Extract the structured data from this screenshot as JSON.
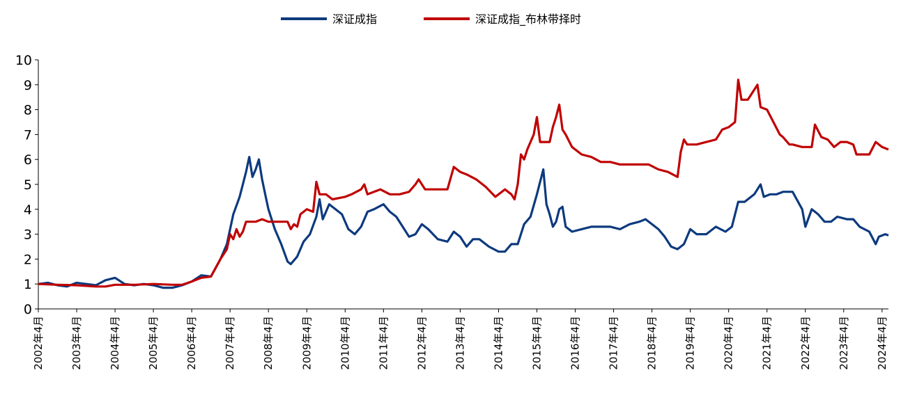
{
  "chart_data": {
    "type": "line",
    "title": "",
    "xlabel": "",
    "ylabel": "",
    "ylim": [
      0,
      10
    ],
    "y_ticks": [
      0,
      1,
      2,
      3,
      4,
      5,
      6,
      7,
      8,
      9,
      10
    ],
    "x_range": [
      "2002-04",
      "2024-06"
    ],
    "x_tick_labels": [
      "2002年4月",
      "2003年4月",
      "2004年4月",
      "2005年4月",
      "2006年4月",
      "2007年4月",
      "2008年4月",
      "2009年4月",
      "2010年4月",
      "2011年4月",
      "2012年4月",
      "2013年4月",
      "2014年4月",
      "2015年4月",
      "2016年4月",
      "2017年4月",
      "2018年4月",
      "2019年4月",
      "2020年4月",
      "2021年4月",
      "2022年4月",
      "2023年4月",
      "2024年4月"
    ],
    "legend_position": "top-center",
    "grid": false,
    "series": [
      {
        "name": "深证成指",
        "color": "#0d3a7e",
        "points": [
          [
            "2002-04",
            1.0
          ],
          [
            "2002-07",
            1.05
          ],
          [
            "2002-10",
            0.95
          ],
          [
            "2003-01",
            0.9
          ],
          [
            "2003-04",
            1.05
          ],
          [
            "2003-07",
            1.0
          ],
          [
            "2003-10",
            0.95
          ],
          [
            "2004-01",
            1.15
          ],
          [
            "2004-04",
            1.25
          ],
          [
            "2004-07",
            1.0
          ],
          [
            "2004-10",
            0.95
          ],
          [
            "2005-01",
            1.0
          ],
          [
            "2005-04",
            0.95
          ],
          [
            "2005-07",
            0.85
          ],
          [
            "2005-10",
            0.85
          ],
          [
            "2006-01",
            0.95
          ],
          [
            "2006-04",
            1.1
          ],
          [
            "2006-07",
            1.35
          ],
          [
            "2006-10",
            1.3
          ],
          [
            "2007-01",
            2.0
          ],
          [
            "2007-03",
            2.6
          ],
          [
            "2007-05",
            3.8
          ],
          [
            "2007-07",
            4.5
          ],
          [
            "2007-09",
            5.5
          ],
          [
            "2007-10",
            6.1
          ],
          [
            "2007-11",
            5.3
          ],
          [
            "2007-12",
            5.6
          ],
          [
            "2008-01",
            6.0
          ],
          [
            "2008-02",
            5.2
          ],
          [
            "2008-03",
            4.6
          ],
          [
            "2008-04",
            4.0
          ],
          [
            "2008-06",
            3.2
          ],
          [
            "2008-08",
            2.6
          ],
          [
            "2008-10",
            1.9
          ],
          [
            "2008-11",
            1.8
          ],
          [
            "2009-01",
            2.1
          ],
          [
            "2009-03",
            2.7
          ],
          [
            "2009-05",
            3.0
          ],
          [
            "2009-07",
            3.7
          ],
          [
            "2009-08",
            4.4
          ],
          [
            "2009-09",
            3.6
          ],
          [
            "2009-11",
            4.2
          ],
          [
            "2010-01",
            4.0
          ],
          [
            "2010-03",
            3.8
          ],
          [
            "2010-05",
            3.2
          ],
          [
            "2010-07",
            3.0
          ],
          [
            "2010-09",
            3.3
          ],
          [
            "2010-11",
            3.9
          ],
          [
            "2011-01",
            4.0
          ],
          [
            "2011-04",
            4.2
          ],
          [
            "2011-06",
            3.9
          ],
          [
            "2011-08",
            3.7
          ],
          [
            "2011-10",
            3.3
          ],
          [
            "2011-12",
            2.9
          ],
          [
            "2012-02",
            3.0
          ],
          [
            "2012-04",
            3.4
          ],
          [
            "2012-06",
            3.2
          ],
          [
            "2012-09",
            2.8
          ],
          [
            "2012-12",
            2.7
          ],
          [
            "2013-02",
            3.1
          ],
          [
            "2013-04",
            2.9
          ],
          [
            "2013-06",
            2.5
          ],
          [
            "2013-08",
            2.8
          ],
          [
            "2013-10",
            2.8
          ],
          [
            "2014-01",
            2.5
          ],
          [
            "2014-04",
            2.3
          ],
          [
            "2014-06",
            2.3
          ],
          [
            "2014-08",
            2.6
          ],
          [
            "2014-10",
            2.6
          ],
          [
            "2014-12",
            3.4
          ],
          [
            "2015-02",
            3.7
          ],
          [
            "2015-04",
            4.6
          ],
          [
            "2015-06",
            5.6
          ],
          [
            "2015-07",
            4.2
          ],
          [
            "2015-08",
            3.8
          ],
          [
            "2015-09",
            3.3
          ],
          [
            "2015-10",
            3.5
          ],
          [
            "2015-11",
            4.0
          ],
          [
            "2015-12",
            4.1
          ],
          [
            "2016-01",
            3.3
          ],
          [
            "2016-03",
            3.1
          ],
          [
            "2016-06",
            3.2
          ],
          [
            "2016-09",
            3.3
          ],
          [
            "2016-12",
            3.3
          ],
          [
            "2017-03",
            3.3
          ],
          [
            "2017-06",
            3.2
          ],
          [
            "2017-09",
            3.4
          ],
          [
            "2017-12",
            3.5
          ],
          [
            "2018-02",
            3.6
          ],
          [
            "2018-04",
            3.4
          ],
          [
            "2018-06",
            3.2
          ],
          [
            "2018-08",
            2.9
          ],
          [
            "2018-10",
            2.5
          ],
          [
            "2018-12",
            2.4
          ],
          [
            "2019-02",
            2.6
          ],
          [
            "2019-04",
            3.2
          ],
          [
            "2019-06",
            3.0
          ],
          [
            "2019-09",
            3.0
          ],
          [
            "2019-12",
            3.3
          ],
          [
            "2020-03",
            3.1
          ],
          [
            "2020-05",
            3.3
          ],
          [
            "2020-07",
            4.3
          ],
          [
            "2020-09",
            4.3
          ],
          [
            "2020-12",
            4.6
          ],
          [
            "2021-02",
            5.0
          ],
          [
            "2021-03",
            4.5
          ],
          [
            "2021-05",
            4.6
          ],
          [
            "2021-07",
            4.6
          ],
          [
            "2021-09",
            4.7
          ],
          [
            "2021-12",
            4.7
          ],
          [
            "2022-03",
            4.0
          ],
          [
            "2022-04",
            3.3
          ],
          [
            "2022-06",
            4.0
          ],
          [
            "2022-08",
            3.8
          ],
          [
            "2022-10",
            3.5
          ],
          [
            "2022-12",
            3.5
          ],
          [
            "2023-02",
            3.7
          ],
          [
            "2023-05",
            3.6
          ],
          [
            "2023-07",
            3.6
          ],
          [
            "2023-09",
            3.3
          ],
          [
            "2023-12",
            3.1
          ],
          [
            "2024-02",
            2.6
          ],
          [
            "2024-03",
            2.9
          ],
          [
            "2024-05",
            3.0
          ],
          [
            "2024-06",
            2.95
          ]
        ]
      },
      {
        "name": "深证成指_布林带择时",
        "color": "#c00000",
        "points": [
          [
            "2002-04",
            1.0
          ],
          [
            "2002-10",
            0.97
          ],
          [
            "2003-04",
            0.95
          ],
          [
            "2003-10",
            0.9
          ],
          [
            "2004-01",
            0.9
          ],
          [
            "2004-04",
            0.97
          ],
          [
            "2004-10",
            0.97
          ],
          [
            "2005-04",
            1.0
          ],
          [
            "2005-10",
            0.97
          ],
          [
            "2006-01",
            0.97
          ],
          [
            "2006-04",
            1.1
          ],
          [
            "2006-07",
            1.25
          ],
          [
            "2006-10",
            1.3
          ],
          [
            "2007-01",
            2.0
          ],
          [
            "2007-03",
            2.4
          ],
          [
            "2007-04",
            3.0
          ],
          [
            "2007-05",
            2.8
          ],
          [
            "2007-06",
            3.2
          ],
          [
            "2007-07",
            2.9
          ],
          [
            "2007-08",
            3.1
          ],
          [
            "2007-09",
            3.5
          ],
          [
            "2007-12",
            3.5
          ],
          [
            "2008-02",
            3.6
          ],
          [
            "2008-04",
            3.5
          ],
          [
            "2008-10",
            3.5
          ],
          [
            "2008-11",
            3.2
          ],
          [
            "2008-12",
            3.4
          ],
          [
            "2009-01",
            3.3
          ],
          [
            "2009-02",
            3.8
          ],
          [
            "2009-04",
            4.0
          ],
          [
            "2009-06",
            3.9
          ],
          [
            "2009-07",
            5.1
          ],
          [
            "2009-08",
            4.6
          ],
          [
            "2009-10",
            4.6
          ],
          [
            "2009-12",
            4.4
          ],
          [
            "2010-04",
            4.5
          ],
          [
            "2010-06",
            4.6
          ],
          [
            "2010-09",
            4.8
          ],
          [
            "2010-10",
            5.0
          ],
          [
            "2010-11",
            4.6
          ],
          [
            "2011-01",
            4.7
          ],
          [
            "2011-03",
            4.8
          ],
          [
            "2011-06",
            4.6
          ],
          [
            "2011-09",
            4.6
          ],
          [
            "2011-12",
            4.7
          ],
          [
            "2012-02",
            5.0
          ],
          [
            "2012-03",
            5.2
          ],
          [
            "2012-05",
            4.8
          ],
          [
            "2012-09",
            4.8
          ],
          [
            "2012-12",
            4.8
          ],
          [
            "2013-02",
            5.7
          ],
          [
            "2013-04",
            5.5
          ],
          [
            "2013-06",
            5.4
          ],
          [
            "2013-09",
            5.2
          ],
          [
            "2013-12",
            4.9
          ],
          [
            "2014-03",
            4.5
          ],
          [
            "2014-06",
            4.8
          ],
          [
            "2014-08",
            4.6
          ],
          [
            "2014-09",
            4.4
          ],
          [
            "2014-10",
            5.0
          ],
          [
            "2014-11",
            6.2
          ],
          [
            "2014-12",
            6.0
          ],
          [
            "2015-01",
            6.4
          ],
          [
            "2015-03",
            7.0
          ],
          [
            "2015-04",
            7.7
          ],
          [
            "2015-05",
            6.7
          ],
          [
            "2015-08",
            6.7
          ],
          [
            "2015-09",
            7.3
          ],
          [
            "2015-10",
            7.7
          ],
          [
            "2015-11",
            8.2
          ],
          [
            "2015-12",
            7.2
          ],
          [
            "2016-01",
            7.0
          ],
          [
            "2016-03",
            6.5
          ],
          [
            "2016-06",
            6.2
          ],
          [
            "2016-09",
            6.1
          ],
          [
            "2016-12",
            5.9
          ],
          [
            "2017-03",
            5.9
          ],
          [
            "2017-06",
            5.8
          ],
          [
            "2017-09",
            5.8
          ],
          [
            "2017-12",
            5.8
          ],
          [
            "2018-03",
            5.8
          ],
          [
            "2018-06",
            5.6
          ],
          [
            "2018-09",
            5.5
          ],
          [
            "2018-12",
            5.3
          ],
          [
            "2019-01",
            6.3
          ],
          [
            "2019-02",
            6.8
          ],
          [
            "2019-03",
            6.6
          ],
          [
            "2019-06",
            6.6
          ],
          [
            "2019-09",
            6.7
          ],
          [
            "2019-12",
            6.8
          ],
          [
            "2020-02",
            7.2
          ],
          [
            "2020-04",
            7.3
          ],
          [
            "2020-06",
            7.5
          ],
          [
            "2020-07",
            9.2
          ],
          [
            "2020-08",
            8.4
          ],
          [
            "2020-10",
            8.4
          ],
          [
            "2020-12",
            8.8
          ],
          [
            "2021-01",
            9.0
          ],
          [
            "2021-02",
            8.1
          ],
          [
            "2021-04",
            8.0
          ],
          [
            "2021-06",
            7.5
          ],
          [
            "2021-08",
            7.0
          ],
          [
            "2021-09",
            6.9
          ],
          [
            "2021-11",
            6.6
          ],
          [
            "2021-12",
            6.6
          ],
          [
            "2022-03",
            6.5
          ],
          [
            "2022-04",
            6.5
          ],
          [
            "2022-06",
            6.5
          ],
          [
            "2022-07",
            7.4
          ],
          [
            "2022-09",
            6.9
          ],
          [
            "2022-11",
            6.8
          ],
          [
            "2023-01",
            6.5
          ],
          [
            "2023-03",
            6.7
          ],
          [
            "2023-05",
            6.7
          ],
          [
            "2023-07",
            6.6
          ],
          [
            "2023-08",
            6.2
          ],
          [
            "2023-12",
            6.2
          ],
          [
            "2024-02",
            6.7
          ],
          [
            "2024-04",
            6.5
          ],
          [
            "2024-06",
            6.4
          ]
        ]
      }
    ]
  }
}
